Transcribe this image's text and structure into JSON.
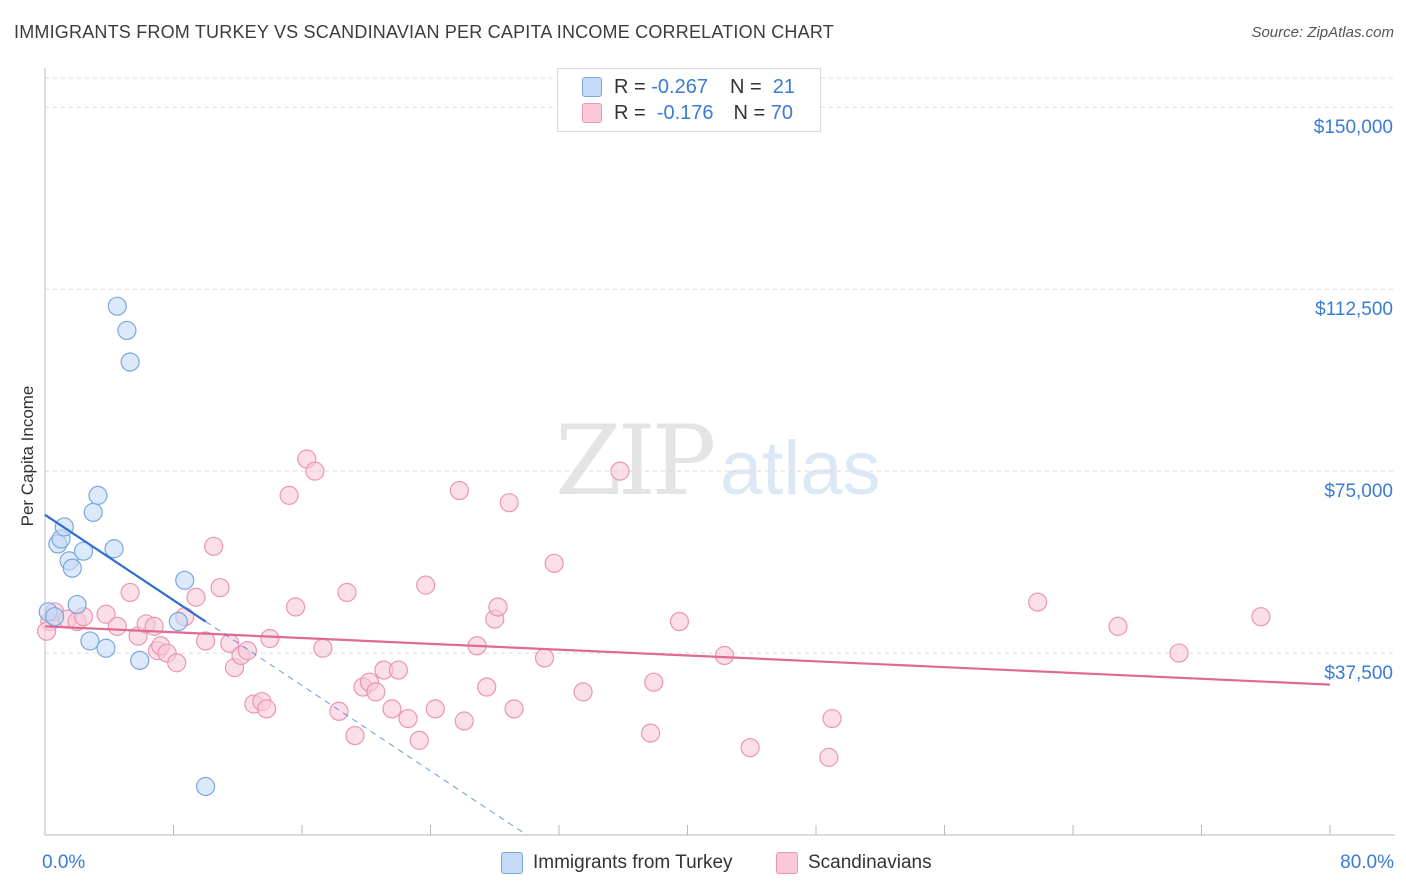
{
  "header": {
    "title": "IMMIGRANTS FROM TURKEY VS SCANDINAVIAN PER CAPITA INCOME CORRELATION CHART",
    "source": "Source: ZipAtlas.com"
  },
  "watermark": {
    "zip": "ZIP",
    "atlas": "atlas"
  },
  "legend_top": [
    {
      "r_label": "R =",
      "r_value": "-0.267",
      "n_label": "N =",
      "n_value": "21"
    },
    {
      "r_label": "R =",
      "r_value": "-0.176",
      "n_label": "N =",
      "n_value": "70"
    }
  ],
  "legend_bottom": [
    "Immigrants from Turkey",
    "Scandinavians"
  ],
  "colors": {
    "turkey_fill": "#c5daf6",
    "turkey_stroke": "#7aa7e0",
    "turkey_line": "#2f6fd0",
    "scand_fill": "#f9c9d8",
    "scand_stroke": "#eb95b2",
    "scand_line": "#e06b92",
    "grid": "#dcdcdc",
    "tick_text": "#3a7bd5"
  },
  "chart_data": {
    "type": "scatter",
    "title": "IMMIGRANTS FROM TURKEY VS SCANDINAVIAN PER CAPITA INCOME CORRELATION CHART",
    "xlabel": "",
    "ylabel": "Per Capita Income",
    "xlim": [
      0,
      80
    ],
    "ylim": [
      0,
      155000
    ],
    "x_tick_labels": [
      "0.0%",
      "80.0%"
    ],
    "y_ticks": [
      {
        "value": 37500,
        "label": "$37,500"
      },
      {
        "value": 75000,
        "label": "$75,000"
      },
      {
        "value": 112500,
        "label": "$112,500"
      },
      {
        "value": 150000,
        "label": "$150,000"
      }
    ],
    "grid": true,
    "legend_position": "bottom",
    "series": [
      {
        "name": "Immigrants from Turkey",
        "R": -0.267,
        "N": 21,
        "points": [
          [
            0.2,
            46000
          ],
          [
            0.6,
            45000
          ],
          [
            0.8,
            60000
          ],
          [
            1.0,
            61000
          ],
          [
            1.2,
            63500
          ],
          [
            1.5,
            56500
          ],
          [
            1.7,
            55000
          ],
          [
            2.0,
            47500
          ],
          [
            2.4,
            58500
          ],
          [
            2.8,
            40000
          ],
          [
            3.0,
            66500
          ],
          [
            3.3,
            70000
          ],
          [
            3.8,
            38500
          ],
          [
            4.3,
            59000
          ],
          [
            4.5,
            109000
          ],
          [
            5.1,
            104000
          ],
          [
            5.3,
            97500
          ],
          [
            5.9,
            36000
          ],
          [
            8.3,
            44000
          ],
          [
            8.7,
            52500
          ],
          [
            10.0,
            10000
          ]
        ],
        "trend": {
          "x0": 0,
          "y0": 66000,
          "x1": 10,
          "y1": 44000,
          "dashed_to_x": 30
        }
      },
      {
        "name": "Scandinavians",
        "R": -0.176,
        "N": 70,
        "points": [
          [
            0.3,
            44000
          ],
          [
            0.6,
            46000
          ],
          [
            1.4,
            44500
          ],
          [
            2.0,
            44000
          ],
          [
            2.4,
            45000
          ],
          [
            3.8,
            45500
          ],
          [
            4.5,
            43000
          ],
          [
            5.3,
            50000
          ],
          [
            5.8,
            41000
          ],
          [
            6.3,
            43500
          ],
          [
            6.8,
            43000
          ],
          [
            7.0,
            38000
          ],
          [
            7.2,
            39000
          ],
          [
            7.6,
            37500
          ],
          [
            8.2,
            35500
          ],
          [
            8.7,
            45000
          ],
          [
            9.4,
            49000
          ],
          [
            10.0,
            40000
          ],
          [
            10.5,
            59500
          ],
          [
            10.9,
            51000
          ],
          [
            11.5,
            39500
          ],
          [
            11.8,
            34500
          ],
          [
            12.2,
            37000
          ],
          [
            12.6,
            38000
          ],
          [
            13.0,
            27000
          ],
          [
            13.5,
            27500
          ],
          [
            13.8,
            26000
          ],
          [
            14.0,
            40500
          ],
          [
            15.2,
            70000
          ],
          [
            15.6,
            47000
          ],
          [
            16.3,
            77500
          ],
          [
            16.8,
            75000
          ],
          [
            17.3,
            38500
          ],
          [
            18.3,
            25500
          ],
          [
            18.8,
            50000
          ],
          [
            19.3,
            20500
          ],
          [
            19.8,
            30500
          ],
          [
            20.2,
            31500
          ],
          [
            20.6,
            29500
          ],
          [
            21.1,
            34000
          ],
          [
            21.6,
            26000
          ],
          [
            22.0,
            34000
          ],
          [
            22.6,
            24000
          ],
          [
            23.3,
            19500
          ],
          [
            23.7,
            51500
          ],
          [
            24.3,
            26000
          ],
          [
            26.1,
            23500
          ],
          [
            25.8,
            71000
          ],
          [
            26.9,
            39000
          ],
          [
            27.5,
            30500
          ],
          [
            28.0,
            44500
          ],
          [
            28.2,
            47000
          ],
          [
            28.9,
            68500
          ],
          [
            29.2,
            26000
          ],
          [
            31.1,
            36500
          ],
          [
            31.7,
            56000
          ],
          [
            33.5,
            29500
          ],
          [
            35.8,
            75000
          ],
          [
            37.7,
            21000
          ],
          [
            37.9,
            31500
          ],
          [
            39.5,
            44000
          ],
          [
            42.3,
            37000
          ],
          [
            43.9,
            18000
          ],
          [
            48.8,
            16000
          ],
          [
            49.0,
            24000
          ],
          [
            66.8,
            43000
          ],
          [
            70.6,
            37500
          ],
          [
            75.7,
            45000
          ],
          [
            61.8,
            48000
          ],
          [
            0.1,
            42000
          ]
        ],
        "trend": {
          "x0": 0,
          "y0": 43000,
          "x1": 80,
          "y1": 31000
        }
      }
    ]
  }
}
